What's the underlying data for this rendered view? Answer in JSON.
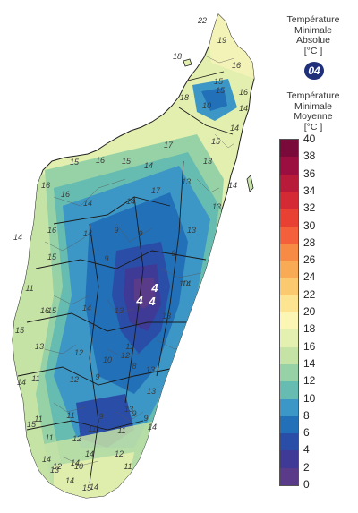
{
  "legend": {
    "absolute_title": "Température Minimale Absolue [°C ]",
    "absolute_title_lines": [
      "Température",
      "Minimale",
      "Absolue",
      "[°C ]"
    ],
    "absolute_min_value": "04",
    "mean_title_lines": [
      "Température",
      "Minimale",
      "Moyenne",
      "[°C ]"
    ],
    "ticks": [
      "40",
      "38",
      "36",
      "34",
      "32",
      "30",
      "28",
      "26",
      "24",
      "22",
      "20",
      "18",
      "16",
      "14",
      "12",
      "10",
      "8",
      "6",
      "4",
      "2",
      "0"
    ],
    "colors": [
      "#7a0a3a",
      "#9a0f3f",
      "#b81a3a",
      "#d42a35",
      "#e84033",
      "#f3603a",
      "#f78a45",
      "#f9aa55",
      "#fbc970",
      "#fde490",
      "#fbf6b4",
      "#e4f0b0",
      "#c6e3a6",
      "#97d2a6",
      "#66bcb0",
      "#3c97c6",
      "#2270b8",
      "#2a4ea8",
      "#3e3a95",
      "#5a3b8a"
    ]
  },
  "map": {
    "labels": [
      {
        "t": "19"
      },
      {
        "t": "22"
      },
      {
        "t": "16"
      },
      {
        "t": "18"
      },
      {
        "t": "15"
      },
      {
        "t": "16"
      },
      {
        "t": "18"
      },
      {
        "t": "15"
      },
      {
        "t": "10"
      },
      {
        "t": "14"
      },
      {
        "t": "14"
      },
      {
        "t": "17"
      },
      {
        "t": "15"
      },
      {
        "t": "15"
      },
      {
        "t": "16"
      },
      {
        "t": "13"
      },
      {
        "t": "15"
      },
      {
        "t": "14"
      },
      {
        "t": "14"
      },
      {
        "t": "16"
      },
      {
        "t": "13"
      },
      {
        "t": "17"
      },
      {
        "t": "16"
      },
      {
        "t": "14"
      },
      {
        "t": "13"
      },
      {
        "t": "14"
      },
      {
        "t": "13"
      },
      {
        "t": "16"
      },
      {
        "t": "14"
      },
      {
        "t": "9"
      },
      {
        "t": "9"
      },
      {
        "t": "14"
      },
      {
        "t": "15"
      },
      {
        "t": "9"
      },
      {
        "t": "9"
      },
      {
        "t": "11"
      },
      {
        "t": "14"
      },
      {
        "t": "15"
      },
      {
        "t": "14"
      },
      {
        "t": "10"
      },
      {
        "t": "13"
      },
      {
        "t": "15"
      },
      {
        "t": "16"
      },
      {
        "t": "11"
      },
      {
        "t": "12"
      },
      {
        "t": "13"
      },
      {
        "t": "10"
      },
      {
        "t": "13"
      },
      {
        "t": "13"
      },
      {
        "t": "12"
      },
      {
        "t": "12"
      },
      {
        "t": "11"
      },
      {
        "t": "9"
      },
      {
        "t": "8"
      },
      {
        "t": "13"
      },
      {
        "t": "14"
      },
      {
        "t": "11"
      },
      {
        "t": "11"
      },
      {
        "t": "9"
      },
      {
        "t": "13"
      },
      {
        "t": "15"
      },
      {
        "t": "11"
      },
      {
        "t": "11"
      },
      {
        "t": "12"
      },
      {
        "t": "11"
      },
      {
        "t": "9"
      },
      {
        "t": "9"
      },
      {
        "t": "12"
      },
      {
        "t": "14"
      },
      {
        "t": "10"
      },
      {
        "t": "14"
      },
      {
        "t": "11"
      },
      {
        "t": "13"
      },
      {
        "t": "14"
      },
      {
        "t": "14"
      },
      {
        "t": "12"
      },
      {
        "t": "14"
      },
      {
        "t": "14"
      },
      {
        "t": "15"
      }
    ],
    "extremes": [
      {
        "t": "4"
      },
      {
        "t": "4"
      },
      {
        "t": "4"
      }
    ]
  }
}
